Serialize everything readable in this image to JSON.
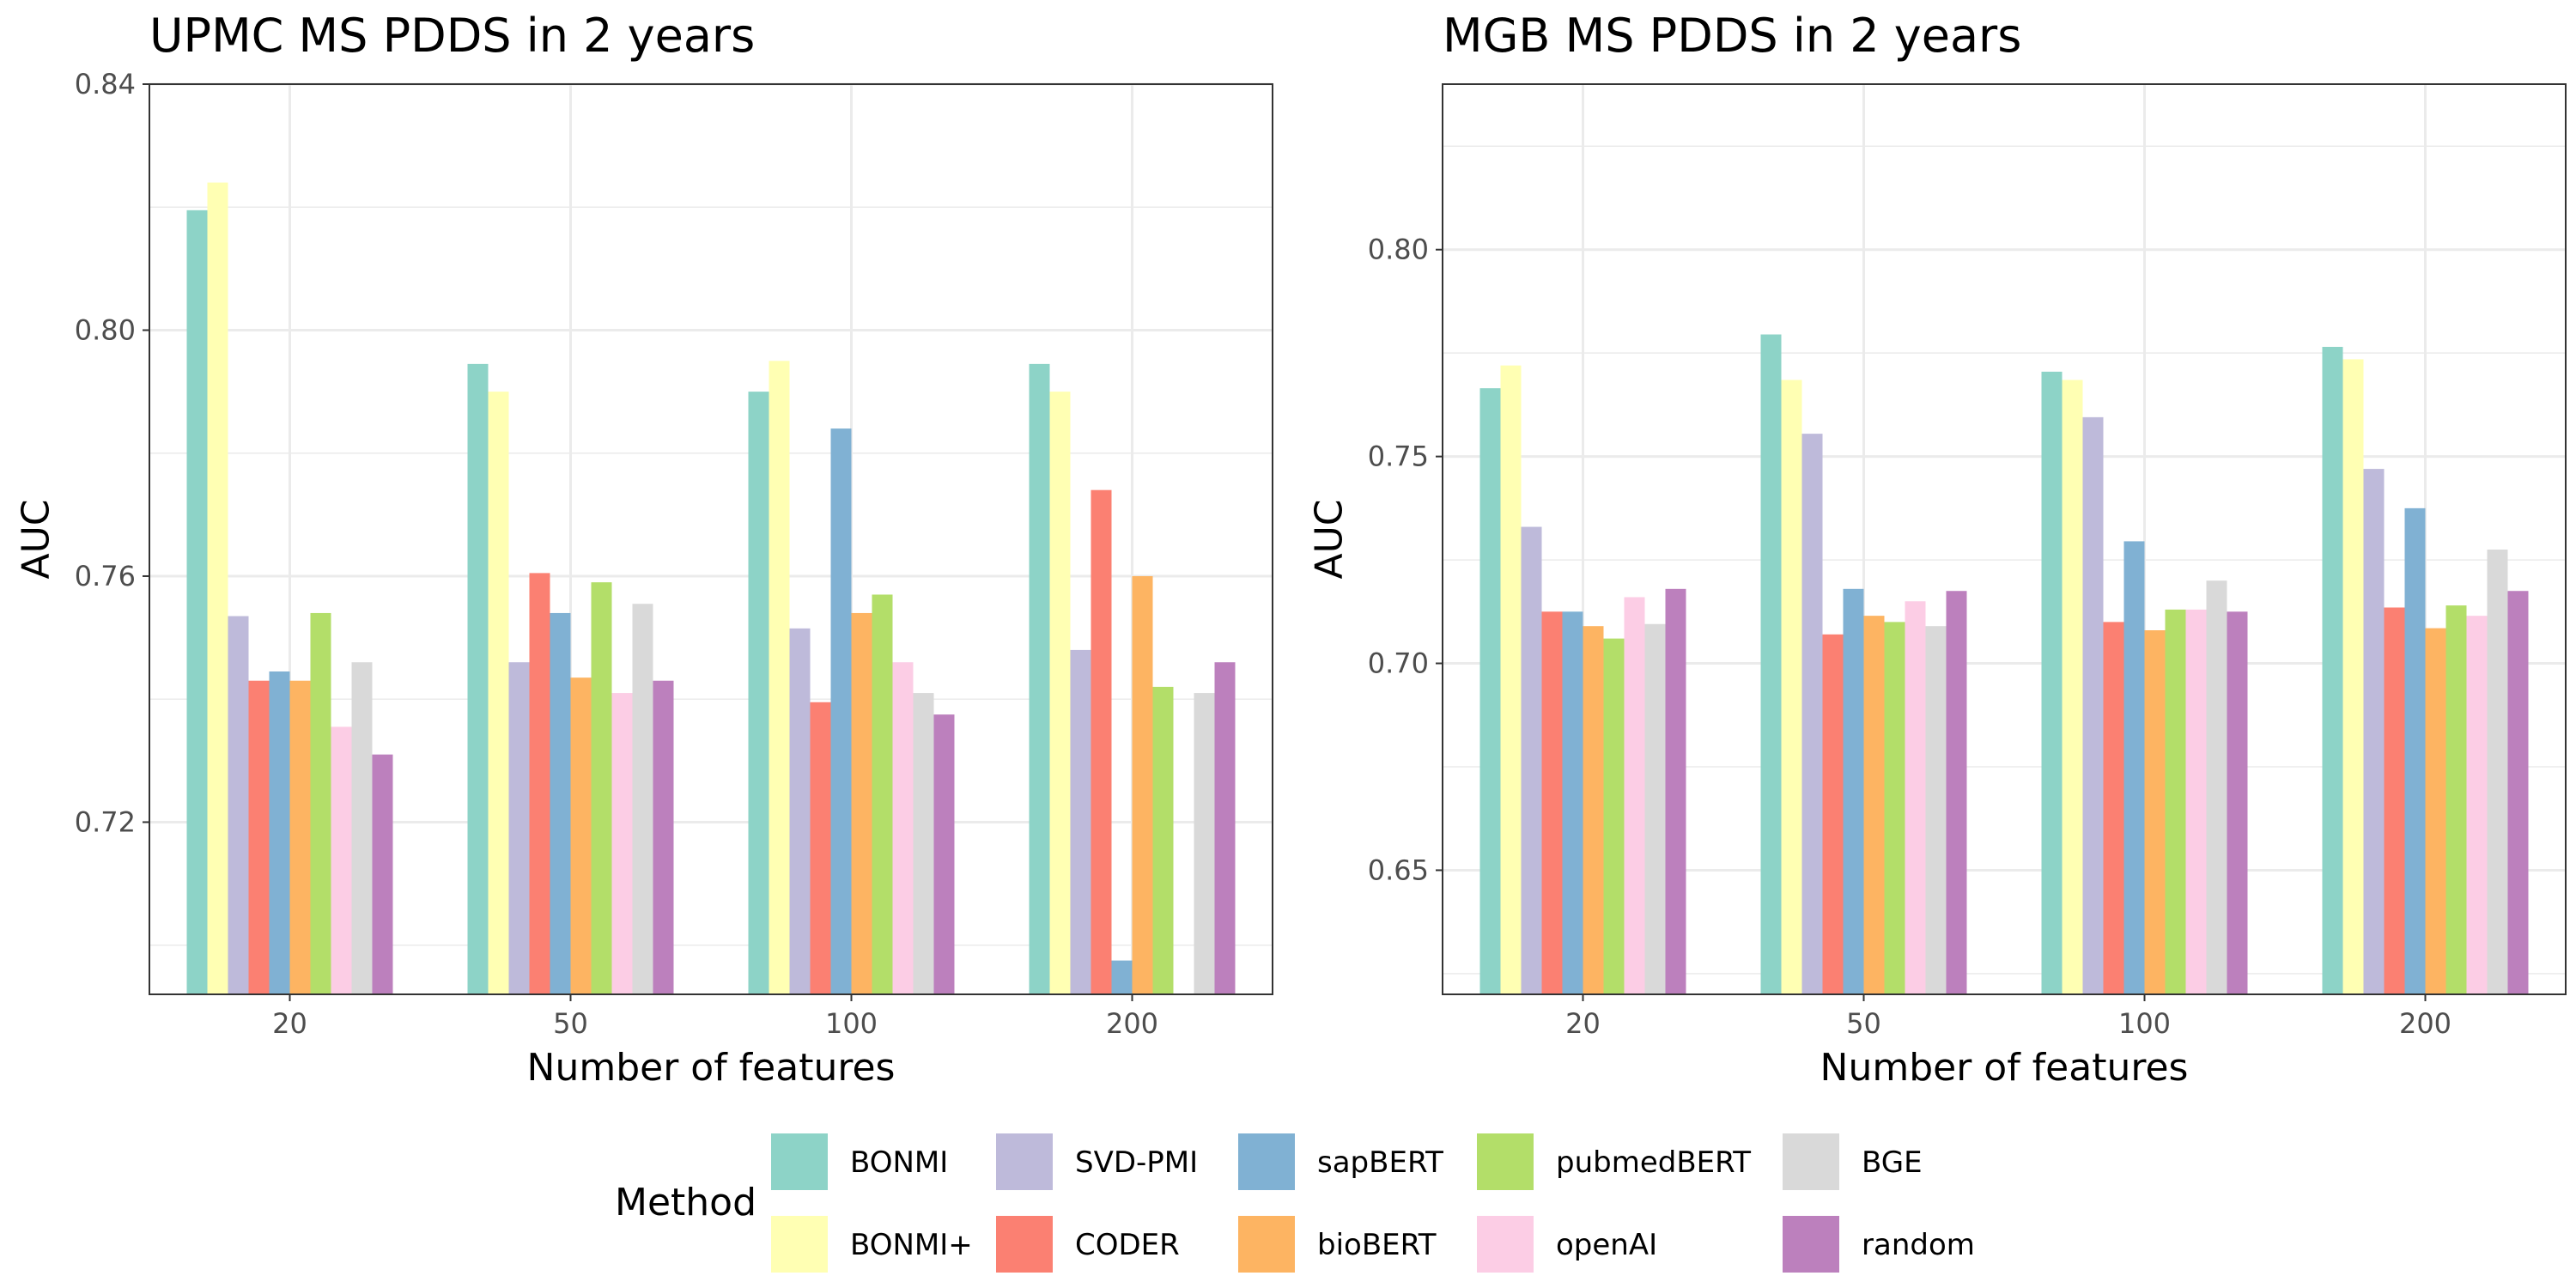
{
  "chart_data": [
    {
      "type": "bar",
      "title": "UPMC MS PDDS in 2 years",
      "xlabel": "Number of features",
      "ylabel": "AUC",
      "categories": [
        "20",
        "50",
        "100",
        "200"
      ],
      "ylim": [
        0.692,
        0.84
      ],
      "major_ticks": [
        0.72,
        0.76,
        0.8,
        0.84
      ],
      "minor_ticks": [
        0.7,
        0.74,
        0.78,
        0.82
      ],
      "tick_labels": [
        "0.72",
        "0.76",
        "0.80",
        "0.84"
      ],
      "grid": true,
      "series": [
        {
          "name": "BONMI",
          "values": [
            0.8195,
            0.7945,
            0.79,
            0.7945
          ]
        },
        {
          "name": "BONMI+",
          "values": [
            0.824,
            0.79,
            0.795,
            0.79
          ]
        },
        {
          "name": "SVD-PMI",
          "values": [
            0.7535,
            0.746,
            0.7515,
            0.748
          ]
        },
        {
          "name": "CODER",
          "values": [
            0.743,
            0.7605,
            0.7395,
            0.774
          ]
        },
        {
          "name": "sapBERT",
          "values": [
            0.7445,
            0.754,
            0.784,
            0.6975
          ]
        },
        {
          "name": "bioBERT",
          "values": [
            0.743,
            0.7435,
            0.754,
            0.76
          ]
        },
        {
          "name": "pubmedBERT",
          "values": [
            0.754,
            0.759,
            0.757,
            0.742
          ]
        },
        {
          "name": "openAI",
          "values": [
            0.7355,
            0.741,
            0.746,
            0.692
          ]
        },
        {
          "name": "BGE",
          "values": [
            0.746,
            0.7555,
            0.741,
            0.741
          ]
        },
        {
          "name": "random",
          "values": [
            0.731,
            0.743,
            0.7375,
            0.746
          ]
        }
      ]
    },
    {
      "type": "bar",
      "title": "MGB MS PDDS in 2 years",
      "xlabel": "Number of features",
      "ylabel": "AUC",
      "categories": [
        "20",
        "50",
        "100",
        "200"
      ],
      "ylim": [
        0.62,
        0.84
      ],
      "major_ticks": [
        0.65,
        0.7,
        0.75,
        0.8
      ],
      "minor_ticks": [
        0.625,
        0.675,
        0.725,
        0.775,
        0.825
      ],
      "tick_labels": [
        "0.65",
        "0.70",
        "0.75",
        "0.80"
      ],
      "grid": true,
      "series": [
        {
          "name": "BONMI",
          "values": [
            0.7665,
            0.7795,
            0.7705,
            0.7765
          ]
        },
        {
          "name": "BONMI+",
          "values": [
            0.772,
            0.7685,
            0.7685,
            0.7735
          ]
        },
        {
          "name": "SVD-PMI",
          "values": [
            0.733,
            0.7555,
            0.7595,
            0.747
          ]
        },
        {
          "name": "CODER",
          "values": [
            0.7125,
            0.707,
            0.71,
            0.7135
          ]
        },
        {
          "name": "sapBERT",
          "values": [
            0.7125,
            0.718,
            0.7295,
            0.7375
          ]
        },
        {
          "name": "bioBERT",
          "values": [
            0.709,
            0.7115,
            0.708,
            0.7085
          ]
        },
        {
          "name": "pubmedBERT",
          "values": [
            0.706,
            0.71,
            0.713,
            0.714
          ]
        },
        {
          "name": "openAI",
          "values": [
            0.716,
            0.715,
            0.713,
            0.7115
          ]
        },
        {
          "name": "BGE",
          "values": [
            0.7095,
            0.709,
            0.72,
            0.7275
          ]
        },
        {
          "name": "random",
          "values": [
            0.718,
            0.7175,
            0.7125,
            0.7175
          ]
        }
      ]
    }
  ],
  "legend": {
    "title": "Method",
    "position": "bottom",
    "items": [
      {
        "name": "BONMI",
        "color": "#8DD3C7"
      },
      {
        "name": "BONMI+",
        "color": "#FFFFB3"
      },
      {
        "name": "SVD-PMI",
        "color": "#BEBADA"
      },
      {
        "name": "CODER",
        "color": "#FB8072"
      },
      {
        "name": "sapBERT",
        "color": "#80B1D3"
      },
      {
        "name": "bioBERT",
        "color": "#FDB462"
      },
      {
        "name": "pubmedBERT",
        "color": "#B3DE69"
      },
      {
        "name": "openAI",
        "color": "#FCCDE5"
      },
      {
        "name": "BGE",
        "color": "#D9D9D9"
      },
      {
        "name": "random",
        "color": "#BC80BD"
      }
    ]
  }
}
